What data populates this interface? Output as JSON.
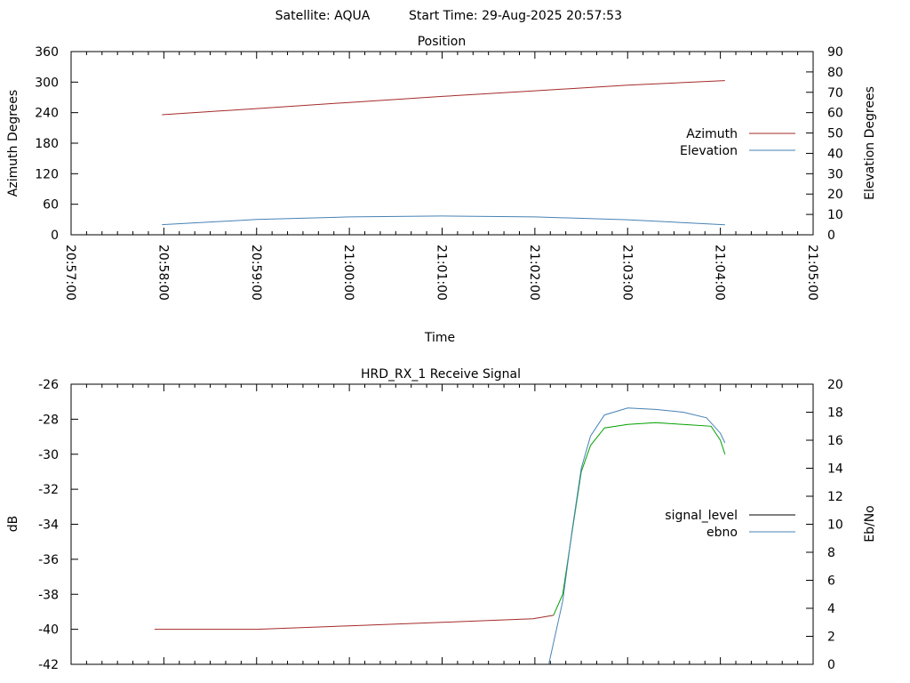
{
  "header": {
    "satellite": "Satellite: AQUA",
    "start_time": "Start Time: 29-Aug-2025 20:57:53"
  },
  "chart_data": [
    {
      "type": "line",
      "title": "Position",
      "xlabel": "Time",
      "ylabel": "Azimuth Degrees",
      "y2label": "Elevation Degrees",
      "xticks": [
        "20:57:00",
        "20:58:00",
        "20:59:00",
        "21:00:00",
        "21:01:00",
        "21:02:00",
        "21:03:00",
        "21:04:00",
        "21:05:00"
      ],
      "xlim_min": [
        0,
        8
      ],
      "ylim": [
        0,
        360
      ],
      "yticks": [
        0,
        60,
        120,
        180,
        240,
        300,
        360
      ],
      "y2lim": [
        0,
        90
      ],
      "y2ticks": [
        0,
        10,
        20,
        30,
        40,
        50,
        60,
        70,
        80,
        90
      ],
      "legend_position": "right",
      "series": [
        {
          "name": "Azimuth",
          "axis": "left",
          "color": "#a52a2a",
          "points": [
            [
              0.98,
              236
            ],
            [
              2.0,
              248
            ],
            [
              3.0,
              260
            ],
            [
              4.0,
              272
            ],
            [
              5.0,
              283
            ],
            [
              6.0,
              294
            ],
            [
              7.05,
              303
            ]
          ]
        },
        {
          "name": "Elevation",
          "axis": "right",
          "color": "#4682b4",
          "points": [
            [
              0.98,
              5.0
            ],
            [
              2.0,
              7.5
            ],
            [
              3.0,
              8.8
            ],
            [
              4.0,
              9.2
            ],
            [
              5.0,
              8.8
            ],
            [
              6.0,
              7.4
            ],
            [
              7.05,
              4.9
            ]
          ]
        }
      ]
    },
    {
      "type": "line",
      "title": "HRD_RX_1 Receive Signal",
      "ylabel": "dB",
      "y2label": "Eb/No",
      "ylim": [
        -42,
        -26
      ],
      "yticks": [
        -42,
        -40,
        -38,
        -36,
        -34,
        -32,
        -30,
        -28,
        -26
      ],
      "y2lim": [
        0,
        20
      ],
      "y2ticks": [
        0,
        2,
        4,
        6,
        8,
        10,
        12,
        14,
        16,
        18,
        20
      ],
      "legend_position": "right",
      "series": [
        {
          "name": "signal_level",
          "axis": "left",
          "color": "#a52a2a",
          "color_after_lock": "#00a000",
          "points": [
            [
              0.9,
              -40.0
            ],
            [
              2.0,
              -40.0
            ],
            [
              3.0,
              -39.8
            ],
            [
              4.0,
              -39.6
            ],
            [
              4.98,
              -39.4
            ],
            [
              5.2,
              -39.2
            ],
            [
              5.3,
              -38.0
            ],
            [
              5.4,
              -34.5
            ],
            [
              5.5,
              -31.0
            ],
            [
              5.6,
              -29.5
            ],
            [
              5.75,
              -28.5
            ],
            [
              6.0,
              -28.3
            ],
            [
              6.3,
              -28.2
            ],
            [
              6.6,
              -28.3
            ],
            [
              6.9,
              -28.4
            ],
            [
              7.0,
              -29.2
            ],
            [
              7.05,
              -30.0
            ]
          ]
        },
        {
          "name": "ebno",
          "axis": "right",
          "color": "#4682b4",
          "points": [
            [
              5.15,
              0
            ],
            [
              5.3,
              4.5
            ],
            [
              5.4,
              9.5
            ],
            [
              5.5,
              14.0
            ],
            [
              5.6,
              16.3
            ],
            [
              5.75,
              17.8
            ],
            [
              6.0,
              18.3
            ],
            [
              6.3,
              18.2
            ],
            [
              6.6,
              18.0
            ],
            [
              6.85,
              17.6
            ],
            [
              7.0,
              16.5
            ],
            [
              7.05,
              15.8
            ]
          ]
        }
      ]
    }
  ]
}
